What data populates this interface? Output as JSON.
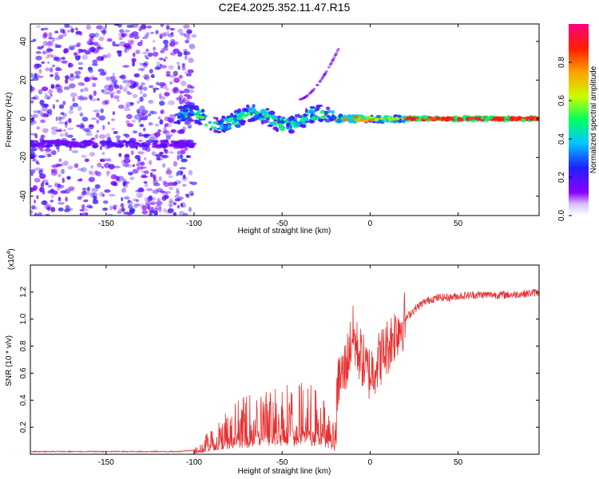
{
  "chart_data": [
    {
      "type": "heatmap",
      "title": "C2E4.2025.352.11.47.R15",
      "xlabel": "Height of straight line (km)",
      "ylabel": "Frequency (Hz)",
      "xlim": [
        -193,
        96
      ],
      "ylim": [
        -50,
        49
      ],
      "xticks": [
        -150,
        -100,
        -50,
        0,
        50
      ],
      "yticks": [
        -40,
        -20,
        0,
        20,
        40
      ],
      "colorbar": {
        "label": "Normalized spectral amplitude",
        "range": [
          0.0,
          1.0
        ],
        "ticks": [
          0.0,
          0.2,
          0.4,
          0.6,
          0.8
        ],
        "tick_labels": [
          "0.0",
          "0.2",
          "0.4",
          "0.6",
          "0.8"
        ],
        "colors": [
          "#ffffff",
          "#8a00ff",
          "#2020ff",
          "#00c8ff",
          "#00ff60",
          "#c8ff00",
          "#ffa000",
          "#ff2000",
          "#ff0080"
        ]
      },
      "features": [
        {
          "name": "diffuse noise region",
          "x_range": [
            -193,
            -100
          ],
          "freq_range": [
            -50,
            49
          ],
          "amplitude": 0.05
        },
        {
          "name": "noisy band",
          "x_range": [
            -193,
            -100
          ],
          "freq": -13,
          "amplitude": 0.12
        },
        {
          "name": "signal track",
          "x_range": [
            -110,
            96
          ],
          "freq": 0,
          "amplitude": 0.9
        },
        {
          "name": "chirp arc",
          "x_range": [
            -40,
            -18
          ],
          "freq_range": [
            10,
            36
          ],
          "amplitude": 0.1
        }
      ]
    },
    {
      "type": "line",
      "title": "",
      "xlabel": "Height of straight line (km)",
      "ylabel": "SNR (10 * v/v)",
      "y_multiplier_label": "(x10",
      "y_multiplier_exp": "4",
      "xlim": [
        -193,
        96
      ],
      "ylim": [
        0,
        1.4
      ],
      "xticks": [
        -150,
        -100,
        -50,
        0,
        50
      ],
      "yticks": [
        0.2,
        0.4,
        0.6,
        0.8,
        1.0,
        1.2
      ],
      "ytick_labels": [
        "0.2",
        "0.4",
        "0.6",
        "0.8",
        "1.0",
        "1.2"
      ],
      "series": [
        {
          "name": "SNR",
          "color": "#e83030",
          "x": [
            -193,
            -170,
            -150,
            -130,
            -110,
            -100,
            -95,
            -90,
            -85,
            -80,
            -75,
            -70,
            -65,
            -60,
            -55,
            -50,
            -45,
            -40,
            -35,
            -30,
            -25,
            -20,
            -18,
            -15,
            -12,
            -10,
            -8,
            -5,
            -2,
            0,
            5,
            10,
            15,
            20,
            25,
            30,
            35,
            40,
            45,
            50,
            60,
            70,
            80,
            90,
            96
          ],
          "values": [
            0.02,
            0.02,
            0.02,
            0.02,
            0.02,
            0.03,
            0.06,
            0.12,
            0.16,
            0.2,
            0.23,
            0.24,
            0.25,
            0.26,
            0.28,
            0.3,
            0.3,
            0.29,
            0.31,
            0.26,
            0.26,
            0.1,
            0.55,
            0.6,
            0.75,
            0.9,
            0.8,
            0.72,
            0.62,
            0.6,
            0.7,
            0.8,
            0.92,
            1.0,
            1.07,
            1.12,
            1.15,
            1.16,
            1.16,
            1.17,
            1.18,
            1.18,
            1.18,
            1.19,
            1.2
          ]
        }
      ]
    }
  ]
}
